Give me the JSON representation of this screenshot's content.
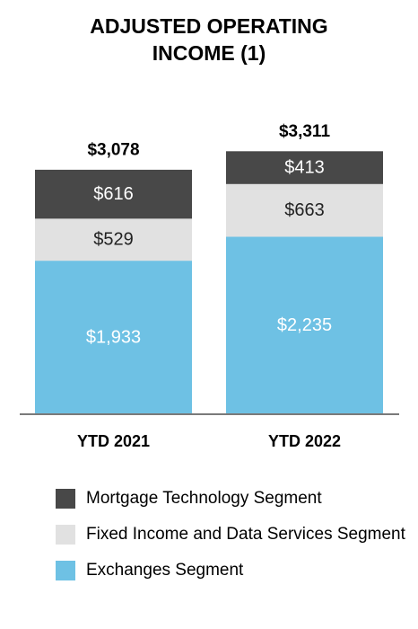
{
  "chart_data": {
    "type": "bar",
    "stacked": true,
    "title_lines": [
      "ADJUSTED OPERATING",
      "INCOME (1)"
    ],
    "categories": [
      "YTD 2021",
      "YTD 2022"
    ],
    "totals": [
      "$3,078",
      "$3,311"
    ],
    "series": [
      {
        "name": "Exchanges Segment",
        "values": [
          1933,
          2235
        ],
        "labels": [
          "$1,933",
          "$2,235"
        ],
        "color": "#6ec1e4",
        "label_color": "#ffffff"
      },
      {
        "name": "Fixed Income and Data Services Segment",
        "values": [
          529,
          663
        ],
        "labels": [
          "$529",
          "$663"
        ],
        "color": "#e1e1e1",
        "label_color": "#222222"
      },
      {
        "name": "Mortgage Technology Segment",
        "values": [
          616,
          413
        ],
        "labels": [
          "$616",
          "$413"
        ],
        "color": "#484848",
        "label_color": "#ffffff"
      }
    ],
    "legend": [
      {
        "label": "Mortgage Technology Segment",
        "color": "#484848"
      },
      {
        "label": "Fixed Income and Data Services Segment",
        "color": "#e1e1e1"
      },
      {
        "label": "Exchanges Segment",
        "color": "#6ec1e4"
      }
    ]
  }
}
